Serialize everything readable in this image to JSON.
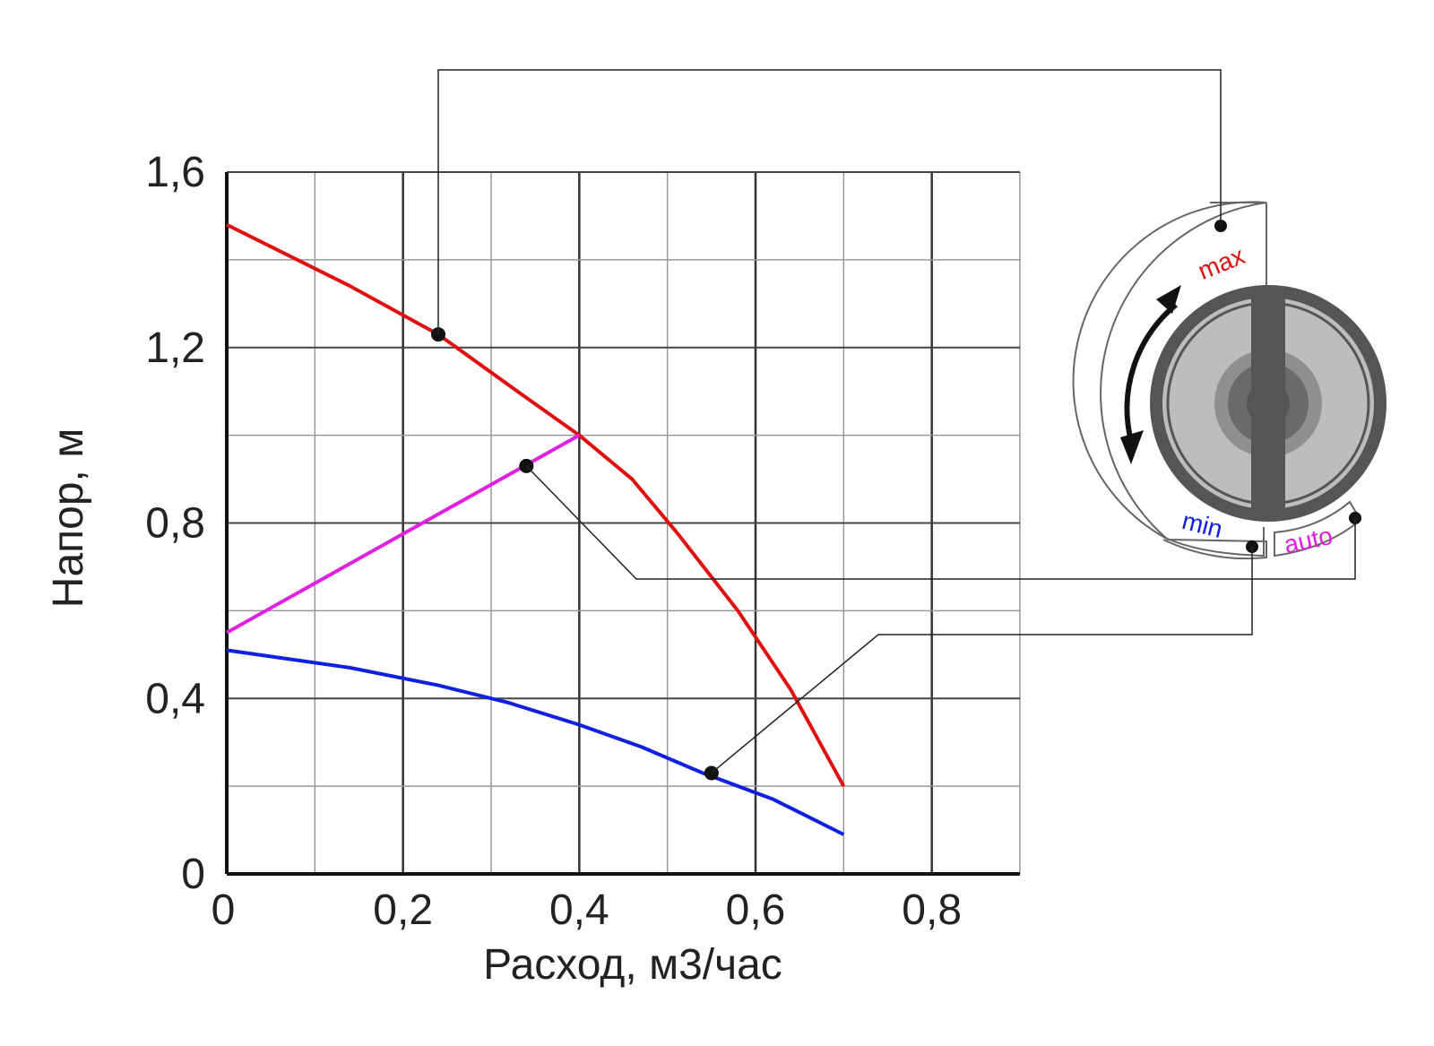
{
  "chart_data": {
    "type": "line",
    "xlabel": "Расход, м3/час",
    "ylabel": "Напор, м",
    "xlim": [
      0,
      0.9
    ],
    "ylim": [
      0,
      1.6
    ],
    "x_ticks": [
      "0",
      "0,2",
      "0,4",
      "0,6",
      "0,8"
    ],
    "x_tick_values": [
      0,
      0.2,
      0.4,
      0.6,
      0.8
    ],
    "y_ticks": [
      "0",
      "0,4",
      "0,8",
      "1,2",
      "1,6"
    ],
    "y_tick_values": [
      0,
      0.4,
      0.8,
      1.2,
      1.6
    ],
    "grid": true,
    "series": [
      {
        "key": "max",
        "color": "#e01010",
        "points": [
          [
            0,
            1.48
          ],
          [
            0.14,
            1.34
          ],
          [
            0.24,
            1.23
          ],
          [
            0.33,
            1.1
          ],
          [
            0.4,
            1.0
          ],
          [
            0.46,
            0.9
          ],
          [
            0.51,
            0.78
          ],
          [
            0.58,
            0.6
          ],
          [
            0.64,
            0.42
          ],
          [
            0.7,
            0.2
          ]
        ]
      },
      {
        "key": "auto",
        "color": "#e020e0",
        "points": [
          [
            0,
            0.55
          ],
          [
            0.4,
            1.0
          ]
        ]
      },
      {
        "key": "min",
        "color": "#1020e0",
        "points": [
          [
            0,
            0.51
          ],
          [
            0.14,
            0.47
          ],
          [
            0.24,
            0.43
          ],
          [
            0.32,
            0.39
          ],
          [
            0.4,
            0.34
          ],
          [
            0.47,
            0.29
          ],
          [
            0.54,
            0.23
          ],
          [
            0.62,
            0.17
          ],
          [
            0.7,
            0.09
          ]
        ]
      }
    ],
    "markers": [
      {
        "key": "max",
        "x": 0.24,
        "y": 1.23
      },
      {
        "key": "auto",
        "x": 0.34,
        "y": 0.93
      },
      {
        "key": "min",
        "x": 0.55,
        "y": 0.23
      }
    ]
  },
  "dial": {
    "labels": {
      "max": "max",
      "min": "min",
      "auto": "auto"
    },
    "colors": {
      "max": "#e01010",
      "min": "#1020e0",
      "auto": "#e020e0"
    },
    "icons": [
      "rotation-arrow-icon",
      "selector-knob-icon"
    ]
  }
}
